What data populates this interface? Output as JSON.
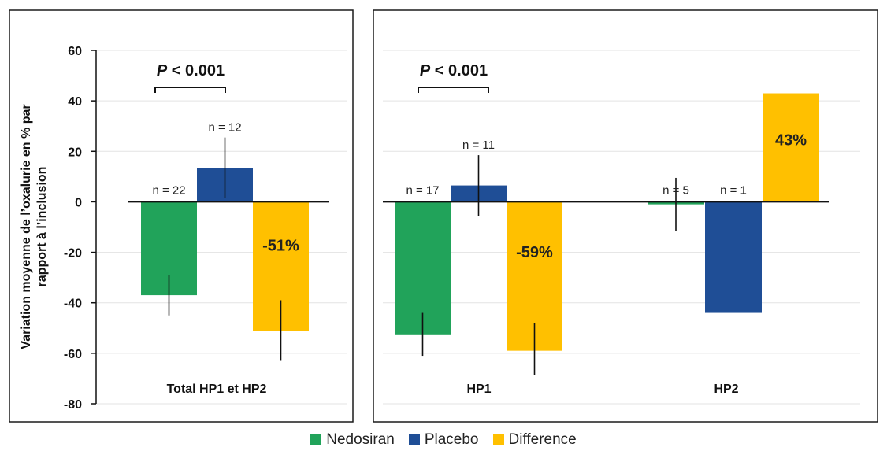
{
  "chart_data": {
    "type": "bar",
    "ylabel": "Variation moyenne de l’oxalurie en % par rapport à l’inclusion",
    "ylim": [
      -80,
      60
    ],
    "yticks": [
      60,
      40,
      20,
      0,
      -20,
      -40,
      -60,
      -80
    ],
    "grid": true,
    "legend_position": "bottom-center",
    "colors": {
      "Nedosiran": "#21a35a",
      "Placebo": "#1f4e96",
      "Difference": "#ffc000"
    },
    "legend": [
      "Nedosiran",
      "Placebo",
      "Difference"
    ],
    "panels": [
      {
        "groups": [
          {
            "label": "Total HP1 et HP2",
            "bars": [
              {
                "series": "Nedosiran",
                "value": -37,
                "err_low": -45,
                "err_high": -29,
                "n": "n = 22"
              },
              {
                "series": "Placebo",
                "value": 13.5,
                "err_low": 1.5,
                "err_high": 25.5,
                "n": "n = 12"
              },
              {
                "series": "Difference",
                "value": -51,
                "err_low": -63,
                "err_high": -39,
                "label": "-51%"
              }
            ],
            "pvalue": {
              "prefix": "P",
              "text": " < 0.001"
            }
          }
        ]
      },
      {
        "groups": [
          {
            "label": "HP1",
            "bars": [
              {
                "series": "Nedosiran",
                "value": -52.5,
                "err_low": -61,
                "err_high": -44,
                "n": "n = 17"
              },
              {
                "series": "Placebo",
                "value": 6.5,
                "err_low": -5.5,
                "err_high": 18.5,
                "n": "n = 11"
              },
              {
                "series": "Difference",
                "value": -59,
                "err_low": -70,
                "err_high": -48,
                "label": "-59%"
              }
            ],
            "pvalue": {
              "prefix": "P",
              "text": " < 0.001"
            }
          },
          {
            "label": "HP2",
            "bars": [
              {
                "series": "Nedosiran",
                "value": -1,
                "err_low": -11.5,
                "err_high": 9.5,
                "n": "n = 5"
              },
              {
                "series": "Placebo",
                "value": -44,
                "n": "n = 1"
              },
              {
                "series": "Difference",
                "value": 43,
                "label": "43%"
              }
            ]
          }
        ]
      }
    ]
  }
}
